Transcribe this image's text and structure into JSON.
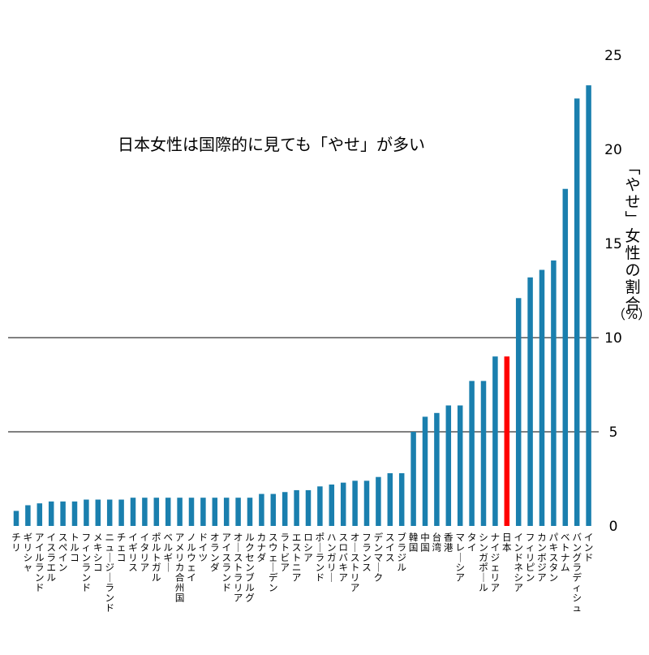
{
  "chart_data": {
    "type": "bar",
    "title": "日本女性は国際的に見ても「やせ」が多い",
    "ylabel": "「やせ」女性の割合",
    "yunit": "（%）",
    "ylim": [
      0,
      25
    ],
    "yticks": [
      "0",
      "5",
      "10",
      "15",
      "20",
      "25"
    ],
    "gridlines": [
      5,
      10
    ],
    "bar_color": "#1a7fae",
    "highlight_color": "#ff0000",
    "gridline_color": "#000000",
    "highlight": "日本",
    "categories": [
      "チリ",
      "ギリシャ",
      "アイルランド",
      "イスラエル",
      "スペイン",
      "トルコ",
      "フィンランド",
      "メキシコ",
      "ニュージーランド",
      "チェコ",
      "イギリス",
      "イタリア",
      "ポルトガル",
      "ベルギー",
      "アメリカ合州国",
      "ノルウェイ",
      "ドイツ",
      "オランダ",
      "アイスランド",
      "オーストラリア",
      "ルクセンブルグ",
      "カナダ",
      "スウェーデン",
      "ラトビア",
      "エストニア",
      "ロシア",
      "ポーランド",
      "ハンガリー",
      "スロバキア",
      "オーストリア",
      "フランス",
      "デンマーク",
      "スイス",
      "ブラジル",
      "韓国",
      "中国",
      "台湾",
      "香港",
      "マレーシア",
      "タイ",
      "シンガポール",
      "ナイジェリア",
      "日本",
      "インドネシア",
      "フィリピン",
      "カンボジア",
      "パキスタン",
      "ベトナム",
      "バングラディシュ",
      "インド"
    ],
    "values": [
      0.8,
      1.1,
      1.2,
      1.3,
      1.3,
      1.3,
      1.4,
      1.4,
      1.4,
      1.4,
      1.5,
      1.5,
      1.5,
      1.5,
      1.5,
      1.5,
      1.5,
      1.5,
      1.5,
      1.5,
      1.5,
      1.7,
      1.7,
      1.8,
      1.9,
      1.9,
      2.1,
      2.2,
      2.3,
      2.4,
      2.4,
      2.6,
      2.8,
      2.8,
      5.0,
      5.8,
      6.0,
      6.4,
      6.4,
      7.7,
      7.7,
      9.0,
      9.0,
      12.1,
      13.2,
      13.6,
      14.1,
      17.9,
      22.7,
      23.4
    ]
  }
}
